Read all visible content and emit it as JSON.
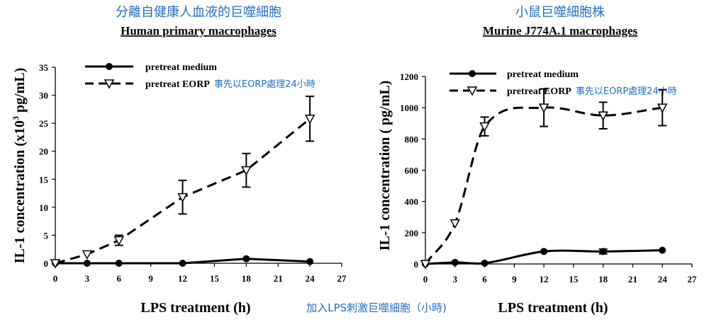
{
  "colors": {
    "annotation": "#1f6fc1",
    "ink": "#000000"
  },
  "xlabel_annotation": "加入LPS刺激巨噬細胞（小時)",
  "chart_data": [
    {
      "type": "line",
      "title_cn": "分離自健康人血液的巨噬細胞",
      "title": "Human primary macrophages",
      "xlabel": "LPS treatment (h)",
      "ylabel_prefix": "IL-1 concentration (x10",
      "ylabel_sup": "3",
      "ylabel_suffix": " pg/mL)",
      "xlim": [
        0,
        27
      ],
      "ylim": [
        0,
        35
      ],
      "xticks": [
        0,
        3,
        6,
        9,
        12,
        15,
        18,
        21,
        24,
        27
      ],
      "yticks": [
        0,
        5,
        10,
        15,
        20,
        25,
        30,
        35
      ],
      "legend_position": "top-center",
      "series": [
        {
          "name": "pretreat medium",
          "annotation": "",
          "style": "solid",
          "marker": "filled-circle",
          "smooth": false,
          "x": [
            0,
            3,
            6,
            12,
            18,
            24
          ],
          "y": [
            0,
            0,
            0,
            0,
            0.8,
            0.3
          ],
          "err": [
            0,
            0,
            0,
            0,
            0,
            0
          ]
        },
        {
          "name": "pretreat EORP",
          "annotation": "事先以EORP處理24小時",
          "style": "dashed",
          "marker": "open-triangle-down",
          "smooth": false,
          "x": [
            0,
            3,
            6,
            12,
            18,
            24
          ],
          "y": [
            0,
            1.6,
            4.1,
            11.8,
            16.6,
            25.8
          ],
          "err": [
            0,
            0,
            0.9,
            3.0,
            3.0,
            4.0
          ]
        }
      ]
    },
    {
      "type": "line",
      "title_cn": "小鼠巨噬細胞株",
      "title": "Murine J774A.1 macrophages",
      "xlabel": "LPS treatment (h)",
      "ylabel_prefix": "IL-1 concentration ( pg/mL)",
      "ylabel_sup": "",
      "ylabel_suffix": "",
      "xlim": [
        0,
        27
      ],
      "ylim": [
        0,
        1200
      ],
      "xticks": [
        0,
        3,
        6,
        9,
        12,
        15,
        18,
        21,
        24,
        27
      ],
      "yticks": [
        0,
        200,
        400,
        600,
        800,
        1000,
        1200
      ],
      "legend_position": "top-center",
      "series": [
        {
          "name": "pretreat medium",
          "annotation": "",
          "style": "solid",
          "marker": "filled-circle",
          "smooth": true,
          "x": [
            0,
            3,
            6,
            12,
            18,
            24
          ],
          "y": [
            0,
            10,
            5,
            80,
            80,
            88
          ],
          "err": [
            0,
            0,
            0,
            0,
            15,
            0
          ]
        },
        {
          "name": "pretreat EORP",
          "annotation": "事先以EORP處理24小時",
          "style": "dashed",
          "marker": "open-triangle-down",
          "smooth": true,
          "x": [
            0,
            3,
            6,
            12,
            18,
            24
          ],
          "y": [
            0,
            260,
            880,
            1000,
            950,
            1000
          ],
          "err": [
            0,
            0,
            60,
            120,
            85,
            115
          ]
        }
      ]
    }
  ]
}
